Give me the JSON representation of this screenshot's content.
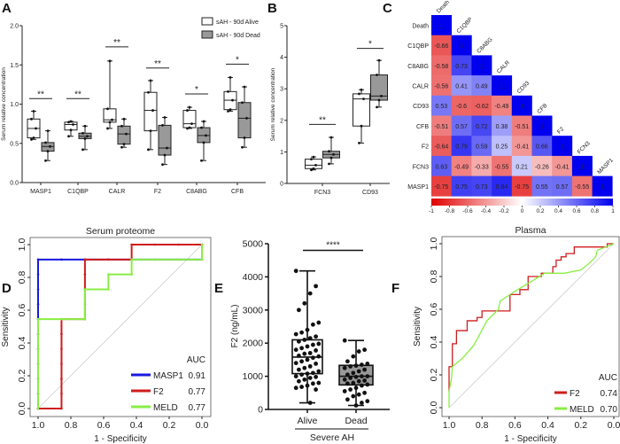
{
  "panel_labels": [
    "A",
    "B",
    "C",
    "D",
    "E",
    "F"
  ],
  "chart_data": [
    {
      "panel": "A",
      "type": "boxplot",
      "ylabel": "Serum relative concentration",
      "ylim": [
        0,
        2.0
      ],
      "yticks": [
        "0.0",
        "0.5",
        "1.0",
        "1.5",
        "2.0"
      ],
      "categories": [
        "MASP1",
        "C1QBP",
        "CALR",
        "F2",
        "C8ABG",
        "CFB"
      ],
      "legend": {
        "position": "top-right",
        "entries": [
          "sAH - 90d Alive",
          "sAH - 90d Dead"
        ]
      },
      "series_colors": [
        "#ffffff",
        "#999999"
      ],
      "series": [
        {
          "name": "sAH - 90d Alive",
          "boxes": [
            [
              0.55,
              0.57,
              0.69,
              0.81,
              0.91
            ],
            [
              0.59,
              0.67,
              0.74,
              0.77,
              0.78
            ],
            [
              0.69,
              0.77,
              0.8,
              0.94,
              1.55
            ],
            [
              0.42,
              0.66,
              0.92,
              1.15,
              1.3
            ],
            [
              0.69,
              0.7,
              0.75,
              0.92,
              0.96
            ],
            [
              0.91,
              0.93,
              1.05,
              1.16,
              1.34
            ]
          ]
        },
        {
          "name": "sAH - 90d Dead",
          "boxes": [
            [
              0.28,
              0.4,
              0.46,
              0.51,
              0.66
            ],
            [
              0.42,
              0.56,
              0.59,
              0.63,
              0.72
            ],
            [
              0.45,
              0.49,
              0.62,
              0.72,
              0.81
            ],
            [
              0.23,
              0.35,
              0.44,
              0.73,
              0.83
            ],
            [
              0.28,
              0.51,
              0.6,
              0.7,
              0.78
            ],
            [
              0.45,
              0.57,
              0.82,
              1.02,
              1.22
            ]
          ]
        }
      ],
      "significance": [
        {
          "level": 1.07,
          "label": "**"
        },
        {
          "level": 1.07,
          "label": "**"
        },
        {
          "level": 1.73,
          "label": "**"
        },
        {
          "level": 1.46,
          "label": "**"
        },
        {
          "level": 1.13,
          "label": "*"
        },
        {
          "level": 1.51,
          "label": "*"
        }
      ]
    },
    {
      "panel": "B",
      "type": "boxplot",
      "ylabel": "Serum relative concentration",
      "ylim": [
        0,
        5
      ],
      "yticks": [
        "0",
        "1",
        "2",
        "3",
        "4",
        "5"
      ],
      "categories": [
        "FCN3",
        "CD93"
      ],
      "series": [
        {
          "name": "sAH - 90d Alive",
          "boxes": [
            [
              0.43,
              0.47,
              0.58,
              0.77,
              0.84
            ],
            [
              1.28,
              1.82,
              2.68,
              2.84,
              2.97
            ]
          ]
        },
        {
          "name": "sAH - 90d Dead",
          "boxes": [
            [
              0.62,
              0.81,
              0.92,
              1.02,
              1.46
            ],
            [
              2.42,
              2.64,
              2.77,
              3.44,
              3.9
            ]
          ]
        }
      ],
      "significance": [
        {
          "level": 1.87,
          "label": "**"
        },
        {
          "level": 4.28,
          "label": "*"
        }
      ]
    },
    {
      "panel": "C",
      "type": "heatmap",
      "labels": [
        "Death",
        "C1QBP",
        "C8ABG",
        "CALR",
        "CD93",
        "CFB",
        "F2",
        "FCN3",
        "MASP1"
      ],
      "values": [
        [
          1
        ],
        [
          -0.66,
          1
        ],
        [
          -0.58,
          0.73,
          1
        ],
        [
          -0.56,
          0.41,
          0.49,
          1
        ],
        [
          0.53,
          -0.6,
          -0.62,
          -0.49,
          1
        ],
        [
          -0.51,
          0.57,
          0.72,
          0.38,
          -0.51,
          1
        ],
        [
          -0.64,
          0.79,
          0.59,
          0.25,
          -0.41,
          0.66,
          1
        ],
        [
          0.63,
          -0.49,
          -0.33,
          -0.55,
          0.21,
          -0.26,
          -0.41,
          1
        ],
        [
          -0.75,
          0.75,
          0.73,
          0.84,
          -0.75,
          0.55,
          0.57,
          -0.55,
          1
        ]
      ],
      "colorbar": {
        "range": [
          -1,
          1
        ],
        "ticks": [
          "-1",
          "-0.8",
          "-0.6",
          "-0.4",
          "-0.2",
          "0",
          "0.2",
          "0.4",
          "0.6",
          "0.8",
          "1"
        ],
        "low_color": "#e00000",
        "mid_color": "#ffffff",
        "high_color": "#0000ee"
      }
    },
    {
      "panel": "D",
      "type": "line",
      "title": "Serum proteome",
      "xlabel": "1 - Specificity",
      "ylabel": "Sensitivity",
      "xlim": [
        1.0,
        0.0
      ],
      "ylim": [
        0.0,
        1.0
      ],
      "xticks": [
        "1.0",
        "0.8",
        "0.6",
        "0.4",
        "0.2",
        "0.0"
      ],
      "yticks": [
        "0.0",
        "0.2",
        "0.4",
        "0.6",
        "0.8",
        "1.0"
      ],
      "legend": {
        "position": "bottom-right",
        "header": "AUC"
      },
      "series": [
        {
          "name": "MASP1",
          "auc": "0.91",
          "color": "#1a1adf",
          "points": [
            [
              1,
              0
            ],
            [
              1,
              0.091
            ],
            [
              1,
              0.182
            ],
            [
              1,
              0.273
            ],
            [
              1,
              0.364
            ],
            [
              1,
              0.455
            ],
            [
              1,
              0.545
            ],
            [
              1,
              0.636
            ],
            [
              1,
              0.727
            ],
            [
              1,
              0.818
            ],
            [
              1,
              0.909
            ],
            [
              0.857,
              0.909
            ],
            [
              0.714,
              0.909
            ],
            [
              0.571,
              0.909
            ],
            [
              0.429,
              0.909
            ],
            [
              0.286,
              0.909
            ],
            [
              0.143,
              0.909
            ],
            [
              0,
              0.909
            ],
            [
              0,
              1
            ]
          ]
        },
        {
          "name": "F2",
          "auc": "0.77",
          "color": "#d01c1c",
          "points": [
            [
              1,
              0
            ],
            [
              0.857,
              0
            ],
            [
              0.857,
              0.091
            ],
            [
              0.857,
              0.182
            ],
            [
              0.857,
              0.273
            ],
            [
              0.857,
              0.364
            ],
            [
              0.857,
              0.455
            ],
            [
              0.857,
              0.545
            ],
            [
              0.714,
              0.545
            ],
            [
              0.714,
              0.636
            ],
            [
              0.714,
              0.727
            ],
            [
              0.714,
              0.818
            ],
            [
              0.714,
              0.909
            ],
            [
              0.571,
              0.909
            ],
            [
              0.429,
              0.909
            ],
            [
              0.429,
              1
            ],
            [
              0.286,
              1
            ],
            [
              0.143,
              1
            ],
            [
              0,
              1
            ]
          ]
        },
        {
          "name": "MELD",
          "auc": "0.77",
          "color": "#88ee44",
          "points": [
            [
              1,
              0
            ],
            [
              1,
              0.091
            ],
            [
              1,
              0.182
            ],
            [
              1,
              0.273
            ],
            [
              1,
              0.364
            ],
            [
              1,
              0.455
            ],
            [
              1,
              0.545
            ],
            [
              0.857,
              0.545
            ],
            [
              0.714,
              0.545
            ],
            [
              0.714,
              0.636
            ],
            [
              0.714,
              0.727
            ],
            [
              0.571,
              0.727
            ],
            [
              0.571,
              0.818
            ],
            [
              0.429,
              0.818
            ],
            [
              0.429,
              0.909
            ],
            [
              0.286,
              0.909
            ],
            [
              0.143,
              0.909
            ],
            [
              0,
              0.909
            ],
            [
              0,
              1
            ]
          ]
        }
      ]
    },
    {
      "panel": "E",
      "type": "boxplot",
      "ylabel": "F2 (ng/mL)",
      "ylim": [
        0,
        5000
      ],
      "yticks": [
        "0",
        "1000",
        "2000",
        "3000",
        "4000",
        "5000"
      ],
      "categories": [
        "Alive",
        "Dead"
      ],
      "group_label": "Severe AH",
      "boxes": [
        [
          200,
          1080,
          1580,
          2100,
          4180
        ],
        [
          120,
          740,
          1000,
          1330,
          2080
        ]
      ],
      "points": [
        [
          4180,
          3720,
          3500,
          3200,
          3000,
          2620,
          2560,
          2400,
          2320,
          2270,
          2200,
          2150,
          2100,
          2050,
          1980,
          1950,
          1900,
          1850,
          1800,
          1780,
          1700,
          1680,
          1620,
          1600,
          1560,
          1500,
          1450,
          1400,
          1380,
          1300,
          1250,
          1200,
          1150,
          1100,
          1080,
          1050,
          1000,
          980,
          950,
          900,
          850,
          800,
          780,
          720,
          680,
          650,
          600,
          200
        ],
        [
          2080,
          1800,
          1750,
          1600,
          1450,
          1380,
          1350,
          1320,
          1300,
          1250,
          1200,
          1150,
          1100,
          1050,
          1000,
          1000,
          980,
          950,
          900,
          870,
          850,
          800,
          780,
          750,
          720,
          650,
          600,
          550,
          500,
          450,
          400,
          300,
          250,
          200,
          120
        ]
      ],
      "significance": {
        "level": 4800,
        "label": "****"
      }
    },
    {
      "panel": "F",
      "type": "line",
      "title": "Plasma",
      "xlabel": "1 - Specificity",
      "ylabel": "Sensitivity",
      "xlim": [
        1.0,
        0.0
      ],
      "ylim": [
        0.0,
        1.0
      ],
      "xticks": [
        "1.0",
        "0.8",
        "0.6",
        "0.4",
        "0.2",
        "0.0"
      ],
      "yticks": [
        "0.0",
        "0.2",
        "0.4",
        "0.6",
        "0.8",
        "1.0"
      ],
      "legend": {
        "position": "bottom-right",
        "header": "AUC"
      },
      "series": [
        {
          "name": "F2",
          "auc": "0.74",
          "color": "#d01c1c",
          "points": [
            [
              1,
              0.1
            ],
            [
              1,
              0.25
            ],
            [
              0.98,
              0.25
            ],
            [
              0.98,
              0.39
            ],
            [
              0.955,
              0.39
            ],
            [
              0.955,
              0.47
            ],
            [
              0.89,
              0.47
            ],
            [
              0.89,
              0.53
            ],
            [
              0.83,
              0.53
            ],
            [
              0.83,
              0.55
            ],
            [
              0.8,
              0.55
            ],
            [
              0.8,
              0.59
            ],
            [
              0.63,
              0.59
            ],
            [
              0.63,
              0.69
            ],
            [
              0.57,
              0.69
            ],
            [
              0.57,
              0.72
            ],
            [
              0.52,
              0.72
            ],
            [
              0.52,
              0.8
            ],
            [
              0.44,
              0.8
            ],
            [
              0.44,
              0.82
            ],
            [
              0.37,
              0.82
            ],
            [
              0.37,
              0.86
            ],
            [
              0.35,
              0.86
            ],
            [
              0.35,
              0.9
            ],
            [
              0.32,
              0.9
            ],
            [
              0.32,
              0.92
            ],
            [
              0.29,
              0.92
            ],
            [
              0.29,
              0.94
            ],
            [
              0.24,
              0.94
            ],
            [
              0.24,
              0.98
            ],
            [
              0.04,
              0.98
            ],
            [
              0.04,
              1
            ],
            [
              0,
              1
            ]
          ]
        },
        {
          "name": "MELD",
          "auc": "0.70",
          "color": "#88ee44",
          "points": [
            [
              1,
              0
            ],
            [
              1,
              0.1
            ],
            [
              0.985,
              0.18
            ],
            [
              0.98,
              0.25
            ],
            [
              0.92,
              0.3
            ],
            [
              0.85,
              0.38
            ],
            [
              0.77,
              0.53
            ],
            [
              0.7,
              0.6
            ],
            [
              0.69,
              0.65
            ],
            [
              0.6,
              0.71
            ],
            [
              0.5,
              0.77
            ],
            [
              0.42,
              0.82
            ],
            [
              0.3,
              0.82
            ],
            [
              0.2,
              0.84
            ],
            [
              0.15,
              0.88
            ],
            [
              0.11,
              0.92
            ],
            [
              0.1,
              0.96
            ],
            [
              0.05,
              0.98
            ],
            [
              0,
              1
            ]
          ]
        }
      ]
    }
  ]
}
